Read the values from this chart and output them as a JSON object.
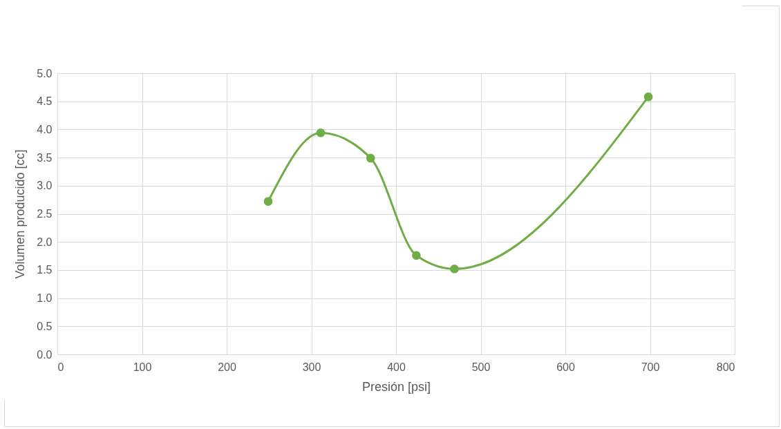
{
  "chart_data": {
    "type": "line",
    "xlabel": "Presión [psi]",
    "ylabel": "Volumen producido [cc]",
    "x": [
      249,
      311,
      370,
      424,
      469,
      698
    ],
    "series": [
      {
        "color": "#70ad47",
        "values": [
          2.72,
          3.94,
          3.49,
          1.76,
          1.52,
          4.58
        ]
      }
    ],
    "xlim": [
      0,
      800
    ],
    "xticks": [
      0,
      100,
      200,
      300,
      400,
      500,
      600,
      700,
      800
    ],
    "ylim": [
      0,
      5
    ],
    "yticks": [
      {
        "value": 0,
        "label": "0.0"
      },
      {
        "value": 0.5,
        "label": "0.5"
      },
      {
        "value": 1,
        "label": "1.0"
      },
      {
        "value": 1.5,
        "label": "1.5"
      },
      {
        "value": 2,
        "label": "2.0"
      },
      {
        "value": 2.5,
        "label": "2.5"
      },
      {
        "value": 3,
        "label": "3.0"
      },
      {
        "value": 3.5,
        "label": "3.5"
      },
      {
        "value": 4,
        "label": "4.0"
      },
      {
        "value": 4.5,
        "label": "4.5"
      },
      {
        "value": 5,
        "label": "5.0"
      }
    ],
    "grid": true,
    "marker": "circle",
    "line_style": "solid"
  }
}
